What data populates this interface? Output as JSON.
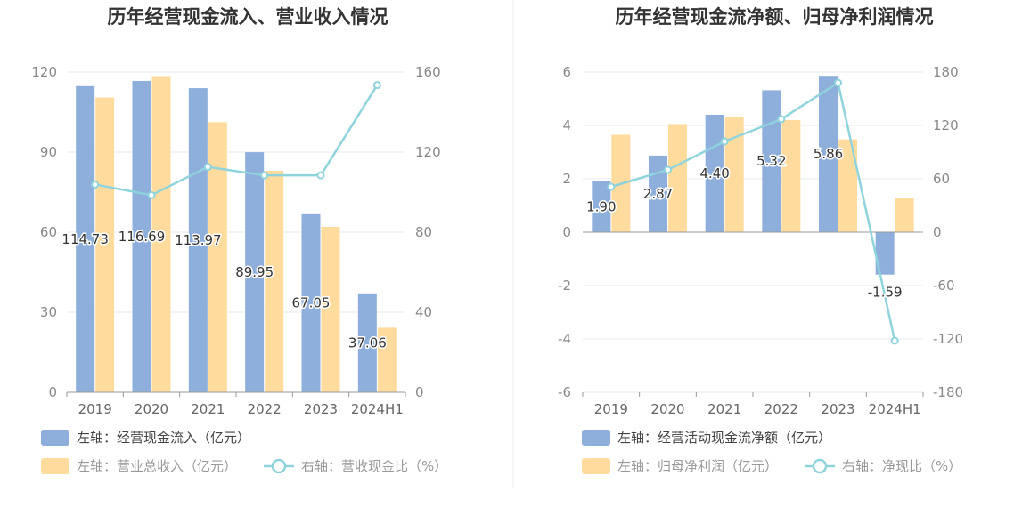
{
  "colors": {
    "bar_primary": "#8eaedc",
    "bar_secondary": "#ffdc9e",
    "line": "#8fd3dd",
    "grid": "#e4e8f1",
    "axis": "#999999",
    "divider": "#eeeeee"
  },
  "chart_data": [
    {
      "type": "bar",
      "title": "历年经营现金流入、营业收入情况",
      "categories": [
        "2019",
        "2020",
        "2021",
        "2022",
        "2023",
        "2024H1"
      ],
      "ylim_left": [
        0,
        120
      ],
      "yticks_left": [
        0,
        30,
        60,
        90,
        120
      ],
      "ylim_right": [
        0,
        160
      ],
      "yticks_right": [
        0,
        40,
        80,
        120,
        160
      ],
      "grid": true,
      "legend_position": "bottom-left",
      "series": [
        {
          "name": "左轴：经营现金流入（亿元）",
          "kind": "bar",
          "axis": "left",
          "values": [
            114.73,
            116.69,
            113.97,
            89.95,
            67.05,
            37.06
          ],
          "labels": [
            "114.73",
            "116.69",
            "113.97",
            "89.95",
            "67.05",
            "37.06"
          ]
        },
        {
          "name": "左轴：营业总收入（亿元）",
          "kind": "bar",
          "axis": "left",
          "values": [
            110.5,
            118.5,
            101.2,
            83.0,
            62.0,
            24.2
          ]
        },
        {
          "name": "右轴：营收现金比（%）",
          "kind": "line",
          "axis": "right",
          "values": [
            103.8,
            98.5,
            112.6,
            108.4,
            108.4,
            153.5
          ]
        }
      ]
    },
    {
      "type": "bar",
      "title": "历年经营现金流净额、归母净利润情况",
      "categories": [
        "2019",
        "2020",
        "2021",
        "2022",
        "2023",
        "2024H1"
      ],
      "ylim_left": [
        -6,
        6
      ],
      "yticks_left": [
        -6,
        -4,
        -2,
        0,
        2,
        4,
        6
      ],
      "ylim_right": [
        -180,
        180
      ],
      "yticks_right": [
        -180,
        -120,
        -60,
        0,
        60,
        120,
        180
      ],
      "grid": true,
      "legend_position": "bottom-left",
      "series": [
        {
          "name": "左轴：经营活动现金流净额（亿元）",
          "kind": "bar",
          "axis": "left",
          "values": [
            1.9,
            2.87,
            4.4,
            5.32,
            5.86,
            -1.59
          ],
          "labels": [
            "1.90",
            "2.87",
            "4.40",
            "5.32",
            "5.86",
            "-1.59"
          ]
        },
        {
          "name": "左轴：归母净利润（亿元）",
          "kind": "bar",
          "axis": "left",
          "values": [
            3.65,
            4.05,
            4.3,
            4.2,
            3.48,
            1.3
          ]
        },
        {
          "name": "右轴：净现比（%）",
          "kind": "line",
          "axis": "right",
          "values": [
            51,
            70,
            102,
            127,
            168,
            -122
          ]
        }
      ]
    }
  ]
}
